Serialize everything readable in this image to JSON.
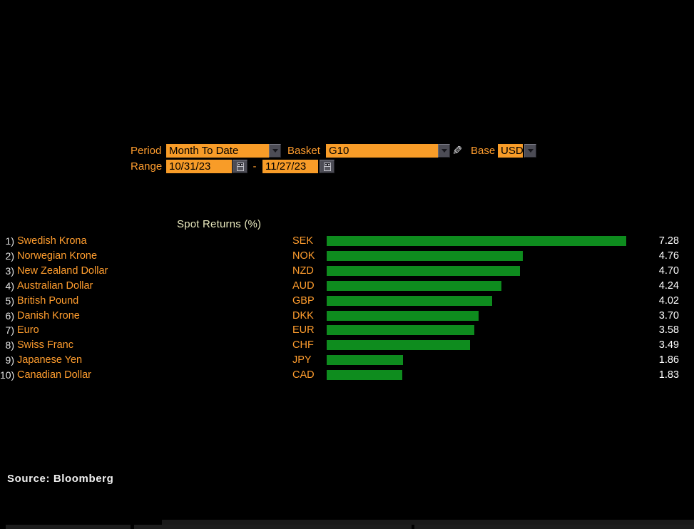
{
  "controls": {
    "period": {
      "label": "Period",
      "value": "Month To Date"
    },
    "basket": {
      "label": "Basket",
      "value": "G10"
    },
    "base": {
      "label": "Base",
      "value": "USD"
    },
    "range": {
      "label": "Range",
      "start": "10/31/23",
      "separator": "-",
      "end": "11/27/23"
    }
  },
  "icons": {
    "dropdown_arrow": "down-triangle",
    "calendar": "calendar-grid",
    "pencil": "edit-pencil"
  },
  "chart_data": {
    "type": "bar",
    "orientation": "horizontal",
    "title": "Spot Returns (%)",
    "rank_labels": [
      "1)",
      "2)",
      "3)",
      "4)",
      "5)",
      "6)",
      "7)",
      "8)",
      "9)",
      "10)"
    ],
    "categories": [
      "Swedish Krona",
      "Norwegian Krone",
      "New Zealand Dollar",
      "Australian Dollar",
      "British Pound",
      "Danish Krone",
      "Euro",
      "Swiss Franc",
      "Japanese Yen",
      "Canadian Dollar"
    ],
    "codes": [
      "SEK",
      "NOK",
      "NZD",
      "AUD",
      "GBP",
      "DKK",
      "EUR",
      "CHF",
      "JPY",
      "CAD"
    ],
    "values": [
      7.28,
      4.76,
      4.7,
      4.24,
      4.02,
      3.7,
      3.58,
      3.49,
      1.86,
      1.83
    ],
    "value_labels": [
      "7.28",
      "4.76",
      "4.70",
      "4.24",
      "4.02",
      "3.70",
      "3.58",
      "3.49",
      "1.86",
      "1.83"
    ],
    "xlim": [
      0,
      7.28
    ],
    "grid": false,
    "legend": false,
    "bar_color": "#0e8c1e",
    "label_color": "#ff9d2e",
    "value_color": "#ffffff"
  },
  "footer": {
    "source": "Source: Bloomberg"
  },
  "colors": {
    "background": "#000000",
    "amber_text": "#ff9d2e",
    "amber_fill": "#f89c28",
    "bar_green": "#0e8c1e",
    "title_text": "#e8e8bd",
    "button_gray": "#4c4c55"
  }
}
